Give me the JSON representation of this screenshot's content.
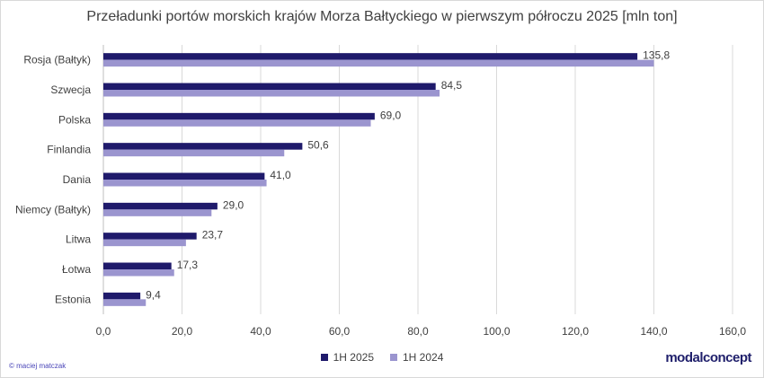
{
  "chart_data": {
    "type": "bar",
    "orientation": "horizontal",
    "title": "Przeładunki portów morskich krajów Morza Bałtyckiego w pierwszym półroczu 2025 [mln ton]",
    "categories": [
      "Rosja (Bałtyk)",
      "Szwecja",
      "Polska",
      "Finlandia",
      "Dania",
      "Niemcy (Bałtyk)",
      "Litwa",
      "Łotwa",
      "Estonia"
    ],
    "series": [
      {
        "name": "1H 2025",
        "color": "#1f1a6b",
        "values": [
          135.8,
          84.5,
          69.0,
          50.6,
          41.0,
          29.0,
          23.7,
          17.3,
          9.4
        ]
      },
      {
        "name": "1H 2024",
        "color": "#9b95cf",
        "values": [
          140.0,
          85.5,
          68.0,
          46.0,
          41.5,
          27.5,
          21.0,
          18.0,
          10.8
        ]
      }
    ],
    "data_labels": [
      "135,8",
      "84,5",
      "69,0",
      "50,6",
      "41,0",
      "29,0",
      "23,7",
      "17,3",
      "9,4"
    ],
    "xlim": [
      0,
      160
    ],
    "xticks": [
      0,
      20,
      40,
      60,
      80,
      100,
      120,
      140,
      160
    ],
    "xtick_labels": [
      "0,0",
      "20,0",
      "40,0",
      "60,0",
      "80,0",
      "100,0",
      "120,0",
      "140,0",
      "160,0"
    ],
    "grid": true,
    "legend_position": "bottom"
  },
  "footer": {
    "copyright": "© maciej matczak",
    "logo": "modalconcept"
  }
}
